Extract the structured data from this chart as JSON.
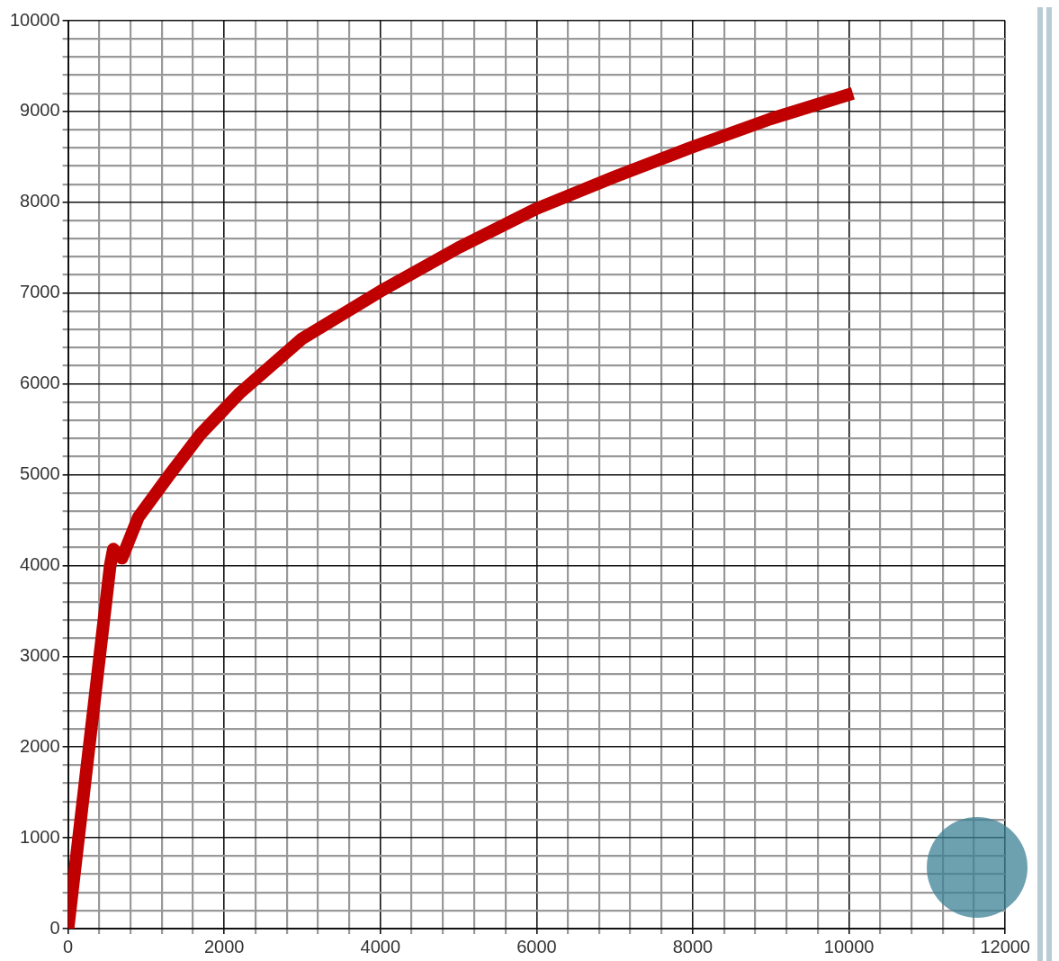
{
  "chart_data": {
    "type": "line",
    "x": [
      0,
      540,
      580,
      690,
      900,
      1300,
      1700,
      2200,
      3000,
      4000,
      5000,
      6000,
      7000,
      8000,
      9000,
      10050
    ],
    "series": [
      {
        "color": "#c00000",
        "values": [
          0,
          4000,
          4180,
          4080,
          4530,
          5000,
          5450,
          5900,
          6500,
          7020,
          7500,
          7930,
          8280,
          8610,
          8920,
          9200
        ]
      }
    ],
    "xlim": [
      0,
      12000
    ],
    "xticks": [
      0,
      {
        "value": 400,
        "label": null
      },
      {
        "value": 800,
        "label": null
      },
      {
        "value": 1200,
        "label": null
      },
      {
        "value": 1600,
        "label": null
      },
      2000,
      {
        "value": 2400,
        "label": null
      },
      {
        "value": 2800,
        "label": null
      },
      {
        "value": 3200,
        "label": null
      },
      {
        "value": 3600,
        "label": null
      },
      4000,
      {
        "value": 4400,
        "label": null
      },
      {
        "value": 4800,
        "label": null
      },
      {
        "value": 5200,
        "label": null
      },
      {
        "value": 5600,
        "label": null
      },
      6000,
      {
        "value": 6400,
        "label": null
      },
      {
        "value": 6800,
        "label": null
      },
      {
        "value": 7200,
        "label": null
      },
      {
        "value": 7600,
        "label": null
      },
      8000,
      {
        "value": 8400,
        "label": null
      },
      {
        "value": 8800,
        "label": null
      },
      {
        "value": 9200,
        "label": null
      },
      {
        "value": 9600,
        "label": null
      },
      10000,
      {
        "value": 10400,
        "label": null
      },
      {
        "value": 10800,
        "label": null
      },
      {
        "value": 11200,
        "label": null
      },
      {
        "value": 11600,
        "label": null
      },
      12000
    ],
    "ylim": [
      0,
      10000
    ],
    "yticks": [
      0,
      {
        "value": 200,
        "label": null
      },
      {
        "value": 400,
        "label": null
      },
      {
        "value": 600,
        "label": null
      },
      {
        "value": 800,
        "label": null
      },
      1000,
      {
        "value": 1200,
        "label": null
      },
      {
        "value": 1400,
        "label": null
      },
      {
        "value": 1600,
        "label": null
      },
      {
        "value": 1800,
        "label": null
      },
      2000,
      {
        "value": 2200,
        "label": null
      },
      {
        "value": 2400,
        "label": null
      },
      {
        "value": 2600,
        "label": null
      },
      {
        "value": 2800,
        "label": null
      },
      3000,
      {
        "value": 3200,
        "label": null
      },
      {
        "value": 3400,
        "label": null
      },
      {
        "value": 3600,
        "label": null
      },
      {
        "value": 3800,
        "label": null
      },
      4000,
      {
        "value": 4200,
        "label": null
      },
      {
        "value": 4400,
        "label": null
      },
      {
        "value": 4600,
        "label": null
      },
      {
        "value": 4800,
        "label": null
      },
      5000,
      {
        "value": 5200,
        "label": null
      },
      {
        "value": 5400,
        "label": null
      },
      {
        "value": 5600,
        "label": null
      },
      {
        "value": 5800,
        "label": null
      },
      6000,
      {
        "value": 6200,
        "label": null
      },
      {
        "value": 6400,
        "label": null
      },
      {
        "value": 6600,
        "label": null
      },
      {
        "value": 6800,
        "label": null
      },
      7000,
      {
        "value": 7200,
        "label": null
      },
      {
        "value": 7400,
        "label": null
      },
      {
        "value": 7600,
        "label": null
      },
      {
        "value": 7800,
        "label": null
      },
      8000,
      {
        "value": 8200,
        "label": null
      },
      {
        "value": 8400,
        "label": null
      },
      {
        "value": 8600,
        "label": null
      },
      {
        "value": 8800,
        "label": null
      },
      9000,
      {
        "value": 9200,
        "label": null
      },
      {
        "value": 9400,
        "label": null
      },
      {
        "value": 9600,
        "label": null
      },
      {
        "value": 9800,
        "label": null
      },
      10000
    ],
    "grid": true,
    "legend": false,
    "marker": "none",
    "line_style": "solid"
  }
}
